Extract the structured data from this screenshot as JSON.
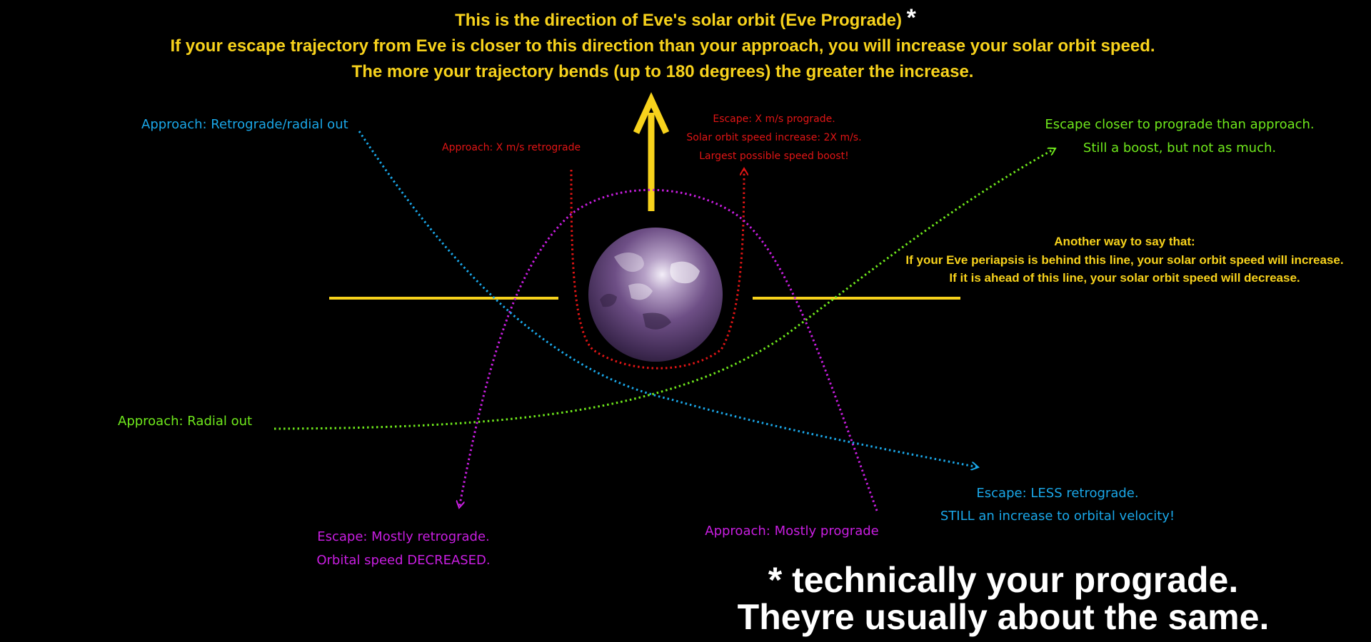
{
  "header": {
    "line1": "This is the direction of Eve's solar orbit (Eve Prograde)",
    "asterisk": "*",
    "line2": "If your escape trajectory from Eve is closer to this direction than your approach, you will increase your solar orbit speed.",
    "line3": "The more your trajectory bends (up to 180 degrees) the greater the increase."
  },
  "labels": {
    "approach_retro_radial": "Approach: Retrograde/radial out",
    "approach_x_retro": "Approach: X m/s retrograde",
    "escape_x_pro_1": "Escape: X m/s prograde.",
    "escape_x_pro_2": "Solar orbit speed increase: 2X m/s.",
    "escape_x_pro_3": "Largest possible speed boost!",
    "escape_closer_1": "Escape closer to prograde than approach.",
    "escape_closer_2": "Still a boost, but not as much.",
    "another_way_1": "Another way to say that:",
    "another_way_2": "If your Eve periapsis is behind this line, your solar orbit speed will increase.",
    "another_way_3": "If it is ahead of this line, your solar orbit speed will decrease.",
    "approach_radial_out": "Approach: Radial out",
    "escape_less_retro_1": "Escape: LESS retrograde.",
    "escape_less_retro_2": "STILL an increase to orbital velocity!",
    "escape_mostly_retro_1": "Escape: Mostly retrograde.",
    "escape_mostly_retro_2": "Orbital speed DECREASED.",
    "approach_mostly_pro": "Approach: Mostly prograde"
  },
  "footnote": {
    "line1": "* technically your prograde.",
    "line2": "Theyre usually about the same."
  },
  "colors": {
    "yellow": "#f7d21c",
    "blue": "#1aa7e8",
    "red": "#e01515",
    "green": "#6fe81c",
    "magenta": "#c81ee0",
    "planet": "#6e4f86"
  }
}
